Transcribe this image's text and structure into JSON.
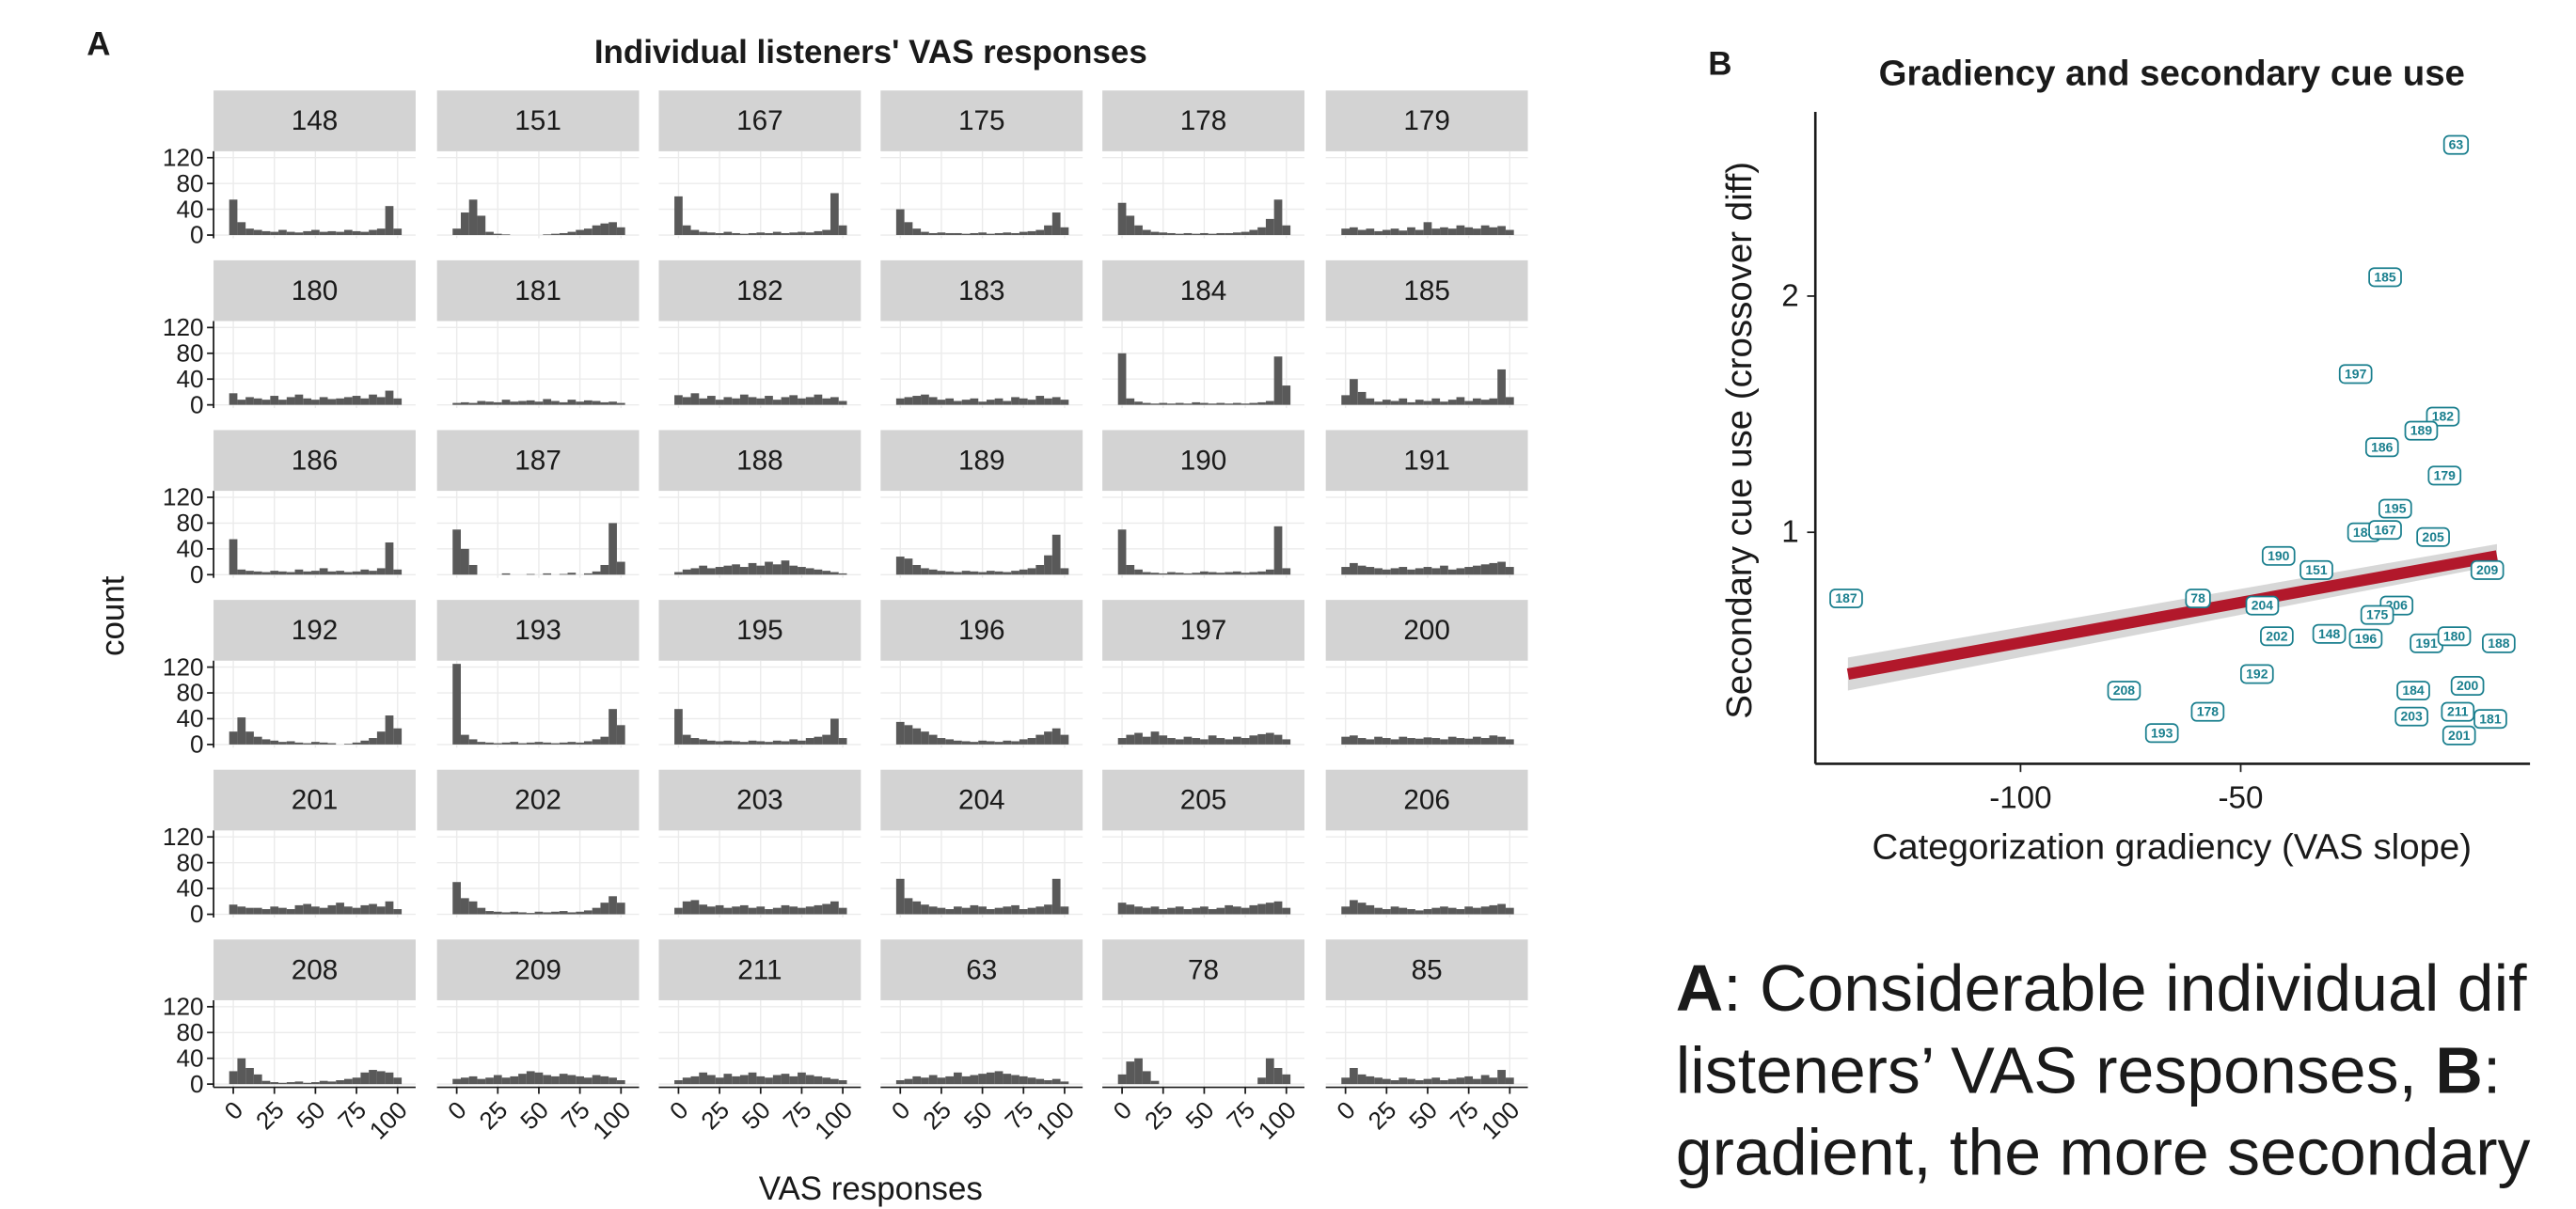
{
  "chart_data": [
    {
      "type": "histogram",
      "panel": "A",
      "title": "Individual listeners' VAS responses",
      "x_label": "VAS responses",
      "y_label": "count",
      "bins": [
        -2.5,
        2.5,
        7.5,
        12.5,
        17.5,
        22.5,
        27.5,
        32.5,
        37.5,
        42.5,
        47.5,
        52.5,
        57.5,
        62.5,
        67.5,
        72.5,
        77.5,
        82.5,
        87.5,
        92.5,
        97.5,
        102.5
      ],
      "xlim": [
        -12,
        111
      ],
      "xticks": [
        0,
        25,
        50,
        75,
        100
      ],
      "ylim": [
        -5,
        130
      ],
      "yticks": [
        0,
        40,
        80,
        120
      ],
      "color": "#595959",
      "grid": true,
      "facets": [
        {
          "name": "148",
          "values": [
            55,
            20,
            10,
            8,
            6,
            5,
            8,
            5,
            4,
            6,
            8,
            5,
            6,
            5,
            8,
            6,
            5,
            8,
            10,
            45,
            10
          ]
        },
        {
          "name": "151",
          "values": [
            10,
            35,
            55,
            30,
            5,
            2,
            1,
            0,
            0,
            0,
            0,
            1,
            2,
            3,
            5,
            8,
            10,
            15,
            18,
            20,
            12
          ]
        },
        {
          "name": "167",
          "values": [
            60,
            15,
            8,
            5,
            4,
            3,
            5,
            3,
            2,
            3,
            4,
            3,
            5,
            3,
            4,
            5,
            4,
            6,
            8,
            65,
            15
          ]
        },
        {
          "name": "175",
          "values": [
            40,
            20,
            10,
            5,
            3,
            4,
            3,
            3,
            2,
            3,
            4,
            2,
            3,
            4,
            3,
            5,
            6,
            8,
            15,
            35,
            12
          ]
        },
        {
          "name": "178",
          "values": [
            50,
            30,
            15,
            8,
            5,
            4,
            3,
            2,
            3,
            2,
            3,
            2,
            3,
            3,
            4,
            5,
            8,
            12,
            25,
            55,
            15
          ]
        },
        {
          "name": "179",
          "values": [
            10,
            12,
            8,
            10,
            6,
            8,
            10,
            7,
            12,
            8,
            20,
            10,
            12,
            10,
            15,
            12,
            10,
            15,
            12,
            14,
            8
          ]
        },
        {
          "name": "180",
          "values": [
            18,
            8,
            12,
            10,
            8,
            14,
            8,
            12,
            16,
            10,
            8,
            12,
            9,
            10,
            12,
            14,
            10,
            16,
            12,
            22,
            10
          ]
        },
        {
          "name": "181",
          "values": [
            3,
            4,
            3,
            6,
            5,
            4,
            8,
            5,
            6,
            7,
            5,
            9,
            6,
            4,
            8,
            5,
            7,
            6,
            4,
            5,
            3
          ]
        },
        {
          "name": "182",
          "values": [
            15,
            12,
            18,
            10,
            14,
            8,
            12,
            10,
            16,
            12,
            10,
            14,
            8,
            12,
            15,
            10,
            12,
            16,
            10,
            12,
            6
          ]
        },
        {
          "name": "183",
          "values": [
            10,
            12,
            14,
            16,
            12,
            8,
            10,
            6,
            8,
            10,
            5,
            8,
            10,
            6,
            12,
            10,
            8,
            14,
            10,
            12,
            8
          ]
        },
        {
          "name": "184",
          "values": [
            80,
            10,
            5,
            3,
            2,
            3,
            2,
            3,
            2,
            4,
            3,
            2,
            3,
            2,
            3,
            2,
            3,
            4,
            6,
            75,
            30
          ]
        },
        {
          "name": "185",
          "values": [
            15,
            40,
            20,
            10,
            5,
            8,
            6,
            10,
            4,
            8,
            6,
            10,
            5,
            8,
            12,
            6,
            10,
            8,
            10,
            55,
            12
          ]
        },
        {
          "name": "186",
          "values": [
            55,
            8,
            6,
            5,
            4,
            6,
            5,
            4,
            8,
            5,
            6,
            10,
            5,
            6,
            4,
            5,
            8,
            6,
            10,
            50,
            8
          ]
        },
        {
          "name": "187",
          "values": [
            70,
            40,
            15,
            0,
            0,
            0,
            2,
            0,
            0,
            1,
            0,
            2,
            0,
            1,
            3,
            0,
            2,
            5,
            15,
            80,
            20
          ]
        },
        {
          "name": "188",
          "values": [
            4,
            8,
            10,
            14,
            10,
            12,
            14,
            16,
            12,
            18,
            14,
            20,
            16,
            22,
            14,
            12,
            10,
            8,
            6,
            4,
            2
          ]
        },
        {
          "name": "189",
          "values": [
            28,
            25,
            15,
            10,
            8,
            6,
            5,
            4,
            6,
            5,
            4,
            6,
            5,
            4,
            6,
            8,
            10,
            15,
            30,
            62,
            10
          ]
        },
        {
          "name": "190",
          "values": [
            70,
            15,
            8,
            4,
            3,
            2,
            4,
            3,
            2,
            3,
            5,
            4,
            3,
            4,
            5,
            3,
            4,
            5,
            8,
            75,
            10
          ]
        },
        {
          "name": "191",
          "values": [
            12,
            18,
            14,
            12,
            10,
            8,
            10,
            12,
            8,
            10,
            12,
            10,
            14,
            8,
            10,
            12,
            14,
            16,
            18,
            20,
            12
          ]
        },
        {
          "name": "192",
          "values": [
            20,
            42,
            20,
            12,
            8,
            6,
            4,
            5,
            3,
            2,
            4,
            3,
            2,
            0,
            1,
            3,
            6,
            10,
            20,
            45,
            25
          ]
        },
        {
          "name": "193",
          "values": [
            125,
            15,
            8,
            4,
            3,
            2,
            3,
            4,
            2,
            3,
            4,
            3,
            2,
            3,
            4,
            3,
            5,
            8,
            12,
            55,
            30
          ]
        },
        {
          "name": "195",
          "values": [
            55,
            15,
            10,
            8,
            6,
            5,
            6,
            5,
            4,
            6,
            5,
            4,
            6,
            5,
            8,
            6,
            10,
            12,
            15,
            40,
            10
          ]
        },
        {
          "name": "196",
          "values": [
            35,
            30,
            25,
            20,
            15,
            10,
            8,
            6,
            5,
            4,
            6,
            5,
            4,
            6,
            5,
            8,
            10,
            15,
            20,
            25,
            15
          ]
        },
        {
          "name": "197",
          "values": [
            10,
            15,
            18,
            12,
            20,
            14,
            10,
            8,
            12,
            10,
            8,
            14,
            10,
            8,
            12,
            10,
            14,
            16,
            18,
            15,
            8
          ]
        },
        {
          "name": "200",
          "values": [
            12,
            14,
            10,
            8,
            12,
            10,
            8,
            12,
            10,
            9,
            11,
            10,
            8,
            12,
            10,
            9,
            12,
            10,
            14,
            12,
            8
          ]
        },
        {
          "name": "201",
          "values": [
            15,
            12,
            10,
            10,
            8,
            12,
            10,
            8,
            14,
            16,
            12,
            10,
            14,
            18,
            12,
            10,
            14,
            16,
            12,
            20,
            8
          ]
        },
        {
          "name": "202",
          "values": [
            50,
            25,
            20,
            10,
            5,
            4,
            3,
            4,
            3,
            2,
            4,
            3,
            4,
            5,
            3,
            4,
            6,
            10,
            18,
            28,
            18
          ]
        },
        {
          "name": "203",
          "values": [
            10,
            20,
            22,
            15,
            12,
            14,
            10,
            12,
            14,
            10,
            12,
            8,
            10,
            14,
            12,
            10,
            12,
            14,
            16,
            20,
            10
          ]
        },
        {
          "name": "204",
          "values": [
            55,
            25,
            20,
            15,
            12,
            10,
            8,
            12,
            10,
            14,
            12,
            8,
            10,
            12,
            14,
            8,
            10,
            12,
            15,
            55,
            12
          ]
        },
        {
          "name": "205",
          "values": [
            18,
            15,
            12,
            10,
            12,
            8,
            10,
            12,
            8,
            10,
            12,
            8,
            10,
            14,
            12,
            10,
            14,
            16,
            18,
            20,
            10
          ]
        },
        {
          "name": "206",
          "values": [
            12,
            22,
            18,
            14,
            10,
            8,
            12,
            10,
            8,
            6,
            8,
            10,
            12,
            10,
            8,
            12,
            10,
            12,
            14,
            16,
            10
          ]
        },
        {
          "name": "208",
          "values": [
            20,
            40,
            25,
            15,
            5,
            3,
            2,
            3,
            4,
            2,
            3,
            5,
            4,
            6,
            8,
            10,
            18,
            22,
            20,
            18,
            10
          ]
        },
        {
          "name": "209",
          "values": [
            8,
            10,
            12,
            8,
            10,
            14,
            10,
            12,
            16,
            20,
            18,
            14,
            12,
            16,
            14,
            12,
            10,
            14,
            12,
            10,
            6
          ]
        },
        {
          "name": "211",
          "values": [
            6,
            10,
            12,
            18,
            14,
            10,
            16,
            12,
            14,
            18,
            12,
            10,
            14,
            16,
            12,
            18,
            14,
            12,
            10,
            8,
            6
          ]
        },
        {
          "name": "63",
          "values": [
            6,
            8,
            12,
            10,
            14,
            10,
            12,
            18,
            12,
            14,
            16,
            18,
            20,
            16,
            14,
            12,
            10,
            8,
            6,
            8,
            4
          ]
        },
        {
          "name": "78",
          "values": [
            15,
            35,
            40,
            20,
            5,
            0,
            0,
            0,
            0,
            0,
            0,
            0,
            0,
            0,
            0,
            0,
            0,
            10,
            40,
            25,
            15
          ]
        },
        {
          "name": "85",
          "values": [
            10,
            25,
            15,
            12,
            10,
            8,
            6,
            10,
            8,
            6,
            8,
            10,
            6,
            8,
            10,
            12,
            8,
            14,
            10,
            22,
            10
          ]
        }
      ]
    },
    {
      "type": "scatter",
      "panel": "B",
      "title": "Gradiency and secondary cue use",
      "x_label": "Categorization gradiency (VAS slope)",
      "y_label": "Secondary cue use (crossover diff)",
      "xlim": [
        -146.6,
        15.7
      ],
      "xticks": [
        -100,
        -50
      ],
      "ylim": [
        0.02,
        2.78
      ],
      "yticks": [
        1,
        2
      ],
      "color": "#1a7f8e",
      "labels": [
        "63",
        "185",
        "197",
        "182",
        "189",
        "186",
        "179",
        "195",
        "183",
        "187",
        "167",
        "205",
        "190",
        "151",
        "209",
        "78",
        "206",
        "204",
        "175",
        "202",
        "148",
        "196",
        "191",
        "180",
        "188",
        "192",
        "208",
        "184",
        "200",
        "178",
        "203",
        "211",
        "181",
        "201",
        "193"
      ],
      "x": [
        -1.1,
        -17.2,
        -23.9,
        -4.1,
        -9.0,
        -17.9,
        -3.7,
        -14.9,
        -22.0,
        -139.6,
        -17.2,
        -6.3,
        -41.4,
        -32.8,
        6.0,
        -59.7,
        -14.6,
        -45.1,
        -19.0,
        -41.8,
        -29.9,
        -21.6,
        -7.8,
        -1.5,
        8.6,
        -46.3,
        -76.5,
        -10.8,
        1.5,
        -57.5,
        -11.2,
        -0.7,
        6.7,
        -0.4,
        -67.9
      ],
      "values": [
        2.64,
        2.08,
        1.67,
        1.49,
        1.43,
        1.36,
        1.24,
        1.1,
        1.0,
        0.72,
        1.01,
        0.98,
        0.9,
        0.84,
        0.84,
        0.72,
        0.69,
        0.69,
        0.65,
        0.56,
        0.57,
        0.55,
        0.53,
        0.56,
        0.53,
        0.4,
        0.33,
        0.33,
        0.35,
        0.24,
        0.22,
        0.24,
        0.21,
        0.14,
        0.15
      ],
      "fit": {
        "x": [
          -139.2,
          8.2
        ],
        "values": [
          0.4,
          0.9
        ],
        "lower": [
          0.33,
          0.86
        ],
        "upper": [
          0.47,
          0.95
        ],
        "color": "#b2182b",
        "band_color": "#d3d3d3"
      }
    }
  ],
  "caption": [
    [
      {
        "text": "A",
        "bold": true
      },
      {
        "text": ": Considerable individual dif"
      }
    ],
    [
      {
        "text": "listeners’ VAS responses, "
      },
      {
        "text": "B",
        "bold": true
      },
      {
        "text": ":"
      }
    ],
    [
      {
        "text": "gradient, the more secondary"
      }
    ]
  ]
}
